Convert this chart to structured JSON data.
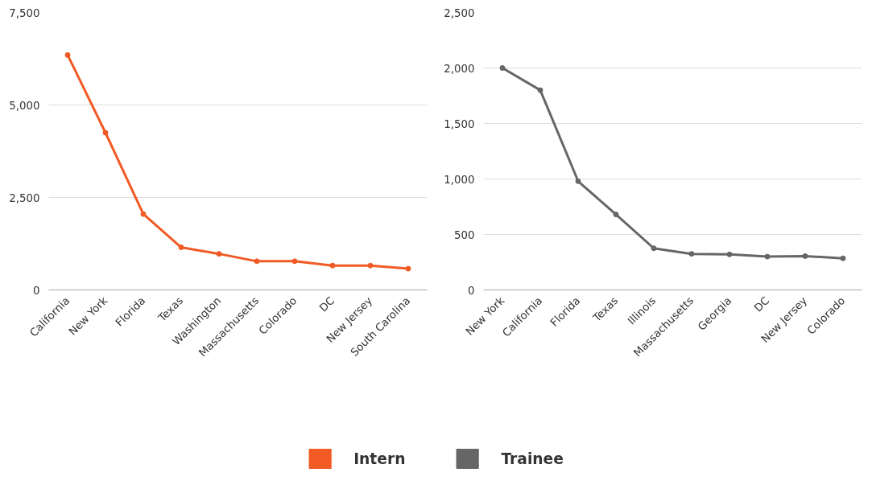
{
  "chart_data": [
    {
      "type": "line",
      "categories": [
        "California",
        "New York",
        "Florida",
        "Texas",
        "Washington",
        "Massachusetts",
        "Colorado",
        "DC",
        "New Jersey",
        "South Carolina"
      ],
      "series": [
        {
          "name": "Intern",
          "color": "#f15a24",
          "values": [
            6350,
            4250,
            2050,
            1150,
            975,
            775,
            775,
            660,
            660,
            575
          ]
        }
      ],
      "ylim": [
        0,
        7500
      ],
      "yticks": [
        0,
        {
          "value": 2500,
          "label": "2,500"
        },
        {
          "value": 5000,
          "label": "5,000"
        },
        {
          "value": 7500,
          "label": "7,500"
        }
      ],
      "grid": "y",
      "legend": "bottom",
      "marker": "circle",
      "line_style": "solid"
    },
    {
      "type": "line",
      "categories": [
        "New York",
        "California",
        "Florida",
        "Texas",
        "Illinois",
        "Massachusetts",
        "Georgia",
        "DC",
        "New Jersey",
        "Colorado"
      ],
      "series": [
        {
          "name": "Trainee",
          "color": "#666666",
          "values": [
            2000,
            1800,
            980,
            680,
            375,
            325,
            320,
            300,
            305,
            285
          ]
        }
      ],
      "ylim": [
        0,
        2500
      ],
      "yticks": [
        0,
        500,
        {
          "value": 1000,
          "label": "1,000"
        },
        {
          "value": 1500,
          "label": "1,500"
        },
        {
          "value": 2000,
          "label": "2,000"
        },
        {
          "value": 2500,
          "label": "2,500"
        }
      ],
      "grid": "y",
      "legend": "bottom",
      "marker": "circle",
      "line_style": "solid"
    }
  ]
}
